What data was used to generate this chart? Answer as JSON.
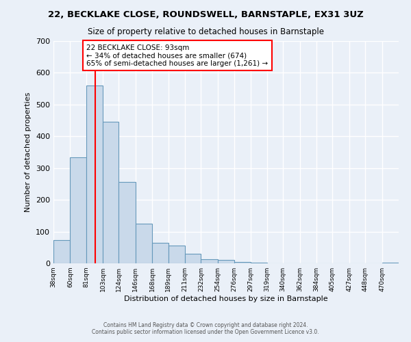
{
  "title": "22, BECKLAKE CLOSE, ROUNDSWELL, BARNSTAPLE, EX31 3UZ",
  "subtitle": "Size of property relative to detached houses in Barnstaple",
  "xlabel": "Distribution of detached houses by size in Barnstaple",
  "ylabel": "Number of detached properties",
  "bar_labels": [
    "38sqm",
    "60sqm",
    "81sqm",
    "103sqm",
    "124sqm",
    "146sqm",
    "168sqm",
    "189sqm",
    "211sqm",
    "232sqm",
    "254sqm",
    "276sqm",
    "297sqm",
    "319sqm",
    "340sqm",
    "362sqm",
    "384sqm",
    "405sqm",
    "427sqm",
    "448sqm",
    "470sqm"
  ],
  "bar_heights": [
    74,
    333,
    560,
    445,
    256,
    126,
    65,
    55,
    30,
    14,
    11,
    5,
    2,
    1,
    0,
    0,
    0,
    0,
    0,
    0,
    3
  ],
  "bar_edges": [
    38,
    60,
    81,
    103,
    124,
    146,
    168,
    189,
    211,
    232,
    254,
    276,
    297,
    319,
    340,
    362,
    384,
    405,
    427,
    448,
    470,
    492
  ],
  "bar_color": "#c9d9ea",
  "bar_edge_color": "#6699bb",
  "vline_x": 93,
  "vline_color": "red",
  "annotation_text": "22 BECKLAKE CLOSE: 93sqm\n← 34% of detached houses are smaller (674)\n65% of semi-detached houses are larger (1,261) →",
  "annotation_box_color": "white",
  "annotation_box_edge": "red",
  "ylim": [
    0,
    700
  ],
  "yticks": [
    0,
    100,
    200,
    300,
    400,
    500,
    600,
    700
  ],
  "background_color": "#eaf0f8",
  "grid_color": "white",
  "footer_line1": "Contains HM Land Registry data © Crown copyright and database right 2024.",
  "footer_line2": "Contains public sector information licensed under the Open Government Licence v3.0."
}
